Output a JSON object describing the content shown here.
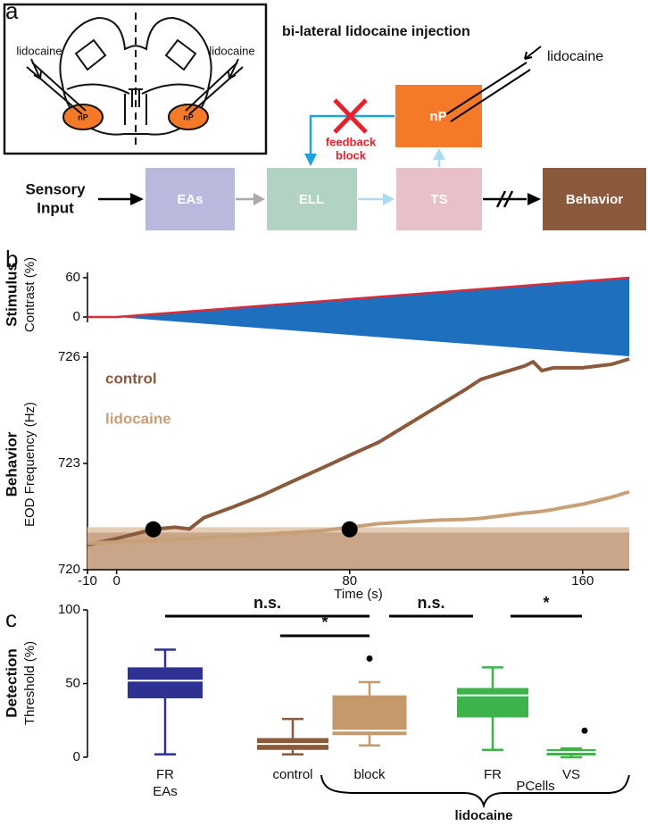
{
  "panel_labels": [
    "a",
    "b",
    "c"
  ],
  "diagram": {
    "title": "bi-lateral lidocaine injection",
    "anatomy": {
      "left_label": "lidocaine",
      "right_label": "lidocaine",
      "left_region": "nP",
      "right_region": "nP"
    },
    "pipette_label": "lidocaine",
    "input": [
      "Sensory",
      "Input"
    ],
    "nodes": [
      "EAs",
      "ELL",
      "TS",
      "nP",
      "Behavior"
    ],
    "block": [
      "feedback",
      "block"
    ]
  },
  "chart_data": [
    {
      "type": "line",
      "ylabel": [
        "Stimulus",
        "Contrast (%)"
      ],
      "x": [
        -10,
        0,
        176
      ],
      "series": [
        {
          "color": "#d62d3a",
          "values": [
            0,
            0,
            60
          ]
        }
      ],
      "band_color": "#1f6fbf",
      "xlim": [
        -10,
        176
      ],
      "ylim": [
        -62,
        62
      ],
      "yticks": [
        0,
        60
      ]
    },
    {
      "type": "line",
      "ylabel": [
        "Behavior",
        "EOD Frequency (Hz)"
      ],
      "xlabel": "Time (s)",
      "x": [
        -10,
        0,
        12.6,
        20,
        25,
        30,
        40,
        50,
        60,
        70,
        80,
        90,
        100,
        110,
        120,
        125,
        130,
        140,
        143,
        146,
        150,
        153,
        160,
        170,
        176
      ],
      "series": [
        {
          "name": "control",
          "color": "#8b5a3c",
          "values": [
            720.7,
            720.88,
            721.14,
            721.2,
            721.15,
            721.47,
            721.77,
            722.1,
            722.48,
            722.85,
            723.23,
            723.6,
            724.1,
            724.6,
            725.1,
            725.37,
            725.5,
            725.75,
            725.87,
            725.62,
            725.7,
            725.7,
            725.7,
            725.8,
            725.95
          ]
        },
        {
          "name": "lidocaine",
          "color": "#c8a078",
          "values": [
            720.75,
            720.78,
            720.82,
            720.85,
            720.88,
            720.9,
            720.95,
            721.0,
            721.05,
            721.1,
            721.2,
            721.3,
            721.35,
            721.4,
            721.42,
            721.45,
            721.5,
            721.6,
            721.62,
            721.65,
            721.7,
            721.75,
            721.85,
            722.05,
            722.2
          ]
        }
      ],
      "threshold": 721.05,
      "threshold_upper": 721.2,
      "markers": {
        "x": [
          12.6,
          80
        ],
        "values": [
          721.14,
          721.14
        ]
      },
      "xlim": [
        -10,
        176
      ],
      "ylim": [
        720,
        726
      ],
      "xticks": [
        -10,
        0,
        80,
        160
      ],
      "yticks": [
        720,
        723,
        726
      ]
    },
    {
      "type": "box",
      "ylabel": [
        "Detection",
        "Threshold (%)"
      ],
      "categories": [
        "FR",
        "control",
        "block",
        "FR",
        "VS"
      ],
      "groups": [
        "EAs",
        "PCells",
        "lidocaine"
      ],
      "colors": [
        "#2e3192",
        "#8b5a3c",
        "#c49a6c",
        "#3cb44b",
        "#3cb44b"
      ],
      "boxes": [
        {
          "min": 2,
          "q1": 40,
          "median": 52,
          "q3": 61,
          "max": 73,
          "outliers": []
        },
        {
          "min": 2,
          "q1": 5,
          "median": 9,
          "q3": 13,
          "max": 26,
          "outliers": []
        },
        {
          "min": 8,
          "q1": 15,
          "median": 18,
          "q3": 42,
          "max": 51,
          "outliers": [
            67
          ]
        },
        {
          "min": 5,
          "q1": 27,
          "median": 42,
          "q3": 47,
          "max": 61,
          "outliers": []
        },
        {
          "min": 0,
          "q1": 1.2,
          "median": 3.6,
          "q3": 5.5,
          "max": 6,
          "outliers": [
            18
          ]
        }
      ],
      "significance": [
        "n.s.",
        "*",
        "n.s.",
        "*"
      ],
      "ylim": [
        -2,
        104
      ],
      "yticks": [
        0,
        50,
        100
      ]
    }
  ]
}
